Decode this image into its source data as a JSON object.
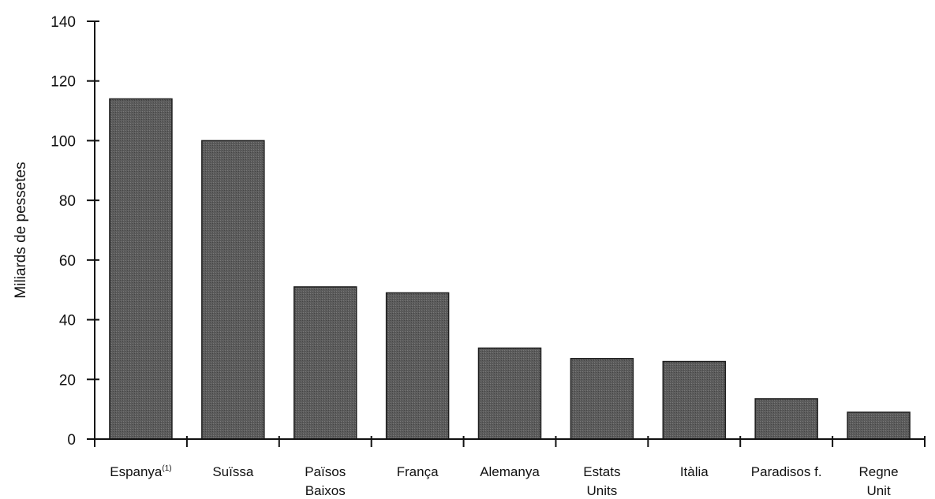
{
  "chart_data": {
    "type": "bar",
    "ylabel": "Miliards de pessetes",
    "ylim": [
      0,
      140
    ],
    "yticks": [
      0,
      20,
      40,
      60,
      80,
      100,
      120,
      140
    ],
    "grid": false,
    "categories": [
      {
        "label": "Espanya",
        "sup": "(1)",
        "value": 114
      },
      {
        "label": "Suïssa",
        "value": 100
      },
      {
        "label": "Països Baixos",
        "lines": [
          "Països",
          "Baixos"
        ],
        "value": 51
      },
      {
        "label": "França",
        "value": 49
      },
      {
        "label": "Alemanya",
        "value": 30.5
      },
      {
        "label": "Estats Units",
        "lines": [
          "Estats",
          "Units"
        ],
        "value": 27
      },
      {
        "label": "Itàlia",
        "value": 26
      },
      {
        "label": "Paradisos f.",
        "value": 13.5
      },
      {
        "label": "Regne Unit",
        "lines": [
          "Regne",
          "Unit"
        ],
        "value": 9
      }
    ],
    "colors": {
      "bar": "#5c5c5c",
      "bar_edge": "#1e1e1e",
      "axis": "#111111"
    }
  }
}
